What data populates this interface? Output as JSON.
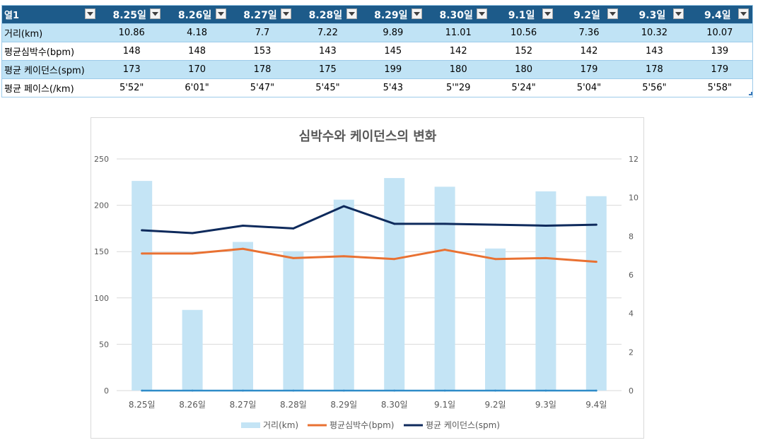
{
  "table": {
    "corner_header": "열1",
    "columns": [
      "8.25일",
      "8.26일",
      "8.27일",
      "8.28일",
      "8.29일",
      "8.30일",
      "9.1일",
      "9.2일",
      "9.3일",
      "9.4일"
    ],
    "rows": [
      {
        "label": "거리(km)",
        "values": [
          "10.86",
          "4.18",
          "7.7",
          "7.22",
          "9.89",
          "11.01",
          "10.56",
          "7.36",
          "10.32",
          "10.07"
        ]
      },
      {
        "label": "평균심박수(bpm)",
        "values": [
          "148",
          "148",
          "153",
          "143",
          "145",
          "142",
          "152",
          "142",
          "143",
          "139"
        ]
      },
      {
        "label": "평균 케이던스(spm)",
        "values": [
          "173",
          "170",
          "178",
          "175",
          "199",
          "180",
          "180",
          "179",
          "178",
          "179"
        ]
      },
      {
        "label": "평균 페이스(/km)",
        "values": [
          "5'52\"",
          "6'01\"",
          "5'47\"",
          "5'45\"",
          "5'43",
          "5'\"29",
          "5'24\"",
          "5'04\"",
          "5'56\"",
          "5'58\""
        ]
      }
    ]
  },
  "colors": {
    "header_bg": "#1D5B8A",
    "band_bg": "#C0E3F5",
    "rule": "#9DCBEA",
    "grid": "#D9D9D9",
    "axis_text": "#595959"
  },
  "chart_data": {
    "type": "bar",
    "title": "심박수와 케이던스의 변화",
    "categories": [
      "8.25일",
      "8.26일",
      "8.27일",
      "8.28일",
      "8.29일",
      "8.30일",
      "9.1일",
      "9.2일",
      "9.3일",
      "9.4일"
    ],
    "series": [
      {
        "name": "거리(km)",
        "type": "bar",
        "secondary_axis": true,
        "color": "#C4E4F5",
        "values": [
          10.86,
          4.18,
          7.7,
          7.22,
          9.89,
          11.01,
          10.56,
          7.36,
          10.32,
          10.07
        ]
      },
      {
        "name": "평균심박수(bpm)",
        "type": "line",
        "secondary_axis": false,
        "color": "#E97132",
        "values": [
          148,
          148,
          153,
          143,
          145,
          142,
          152,
          142,
          143,
          139
        ]
      },
      {
        "name": "평균 케이던스(spm)",
        "type": "line",
        "secondary_axis": false,
        "color": "#0E2A5C",
        "values": [
          173,
          170,
          178,
          175,
          199,
          180,
          180,
          179,
          178,
          179
        ]
      },
      {
        "type": "line",
        "secondary_axis": false,
        "in_legend": false,
        "color": "#2E8BC8",
        "values": [
          0,
          0,
          0,
          0,
          0,
          0,
          0,
          0,
          0,
          0
        ]
      }
    ],
    "left_axis": {
      "ylim": [
        0,
        250
      ],
      "ticks": [
        0,
        50,
        100,
        150,
        200,
        250
      ]
    },
    "right_axis": {
      "ylim": [
        0,
        12
      ],
      "ticks": [
        0,
        2,
        4,
        6,
        8,
        10,
        12
      ]
    },
    "grid": true,
    "legend": "bottom"
  }
}
